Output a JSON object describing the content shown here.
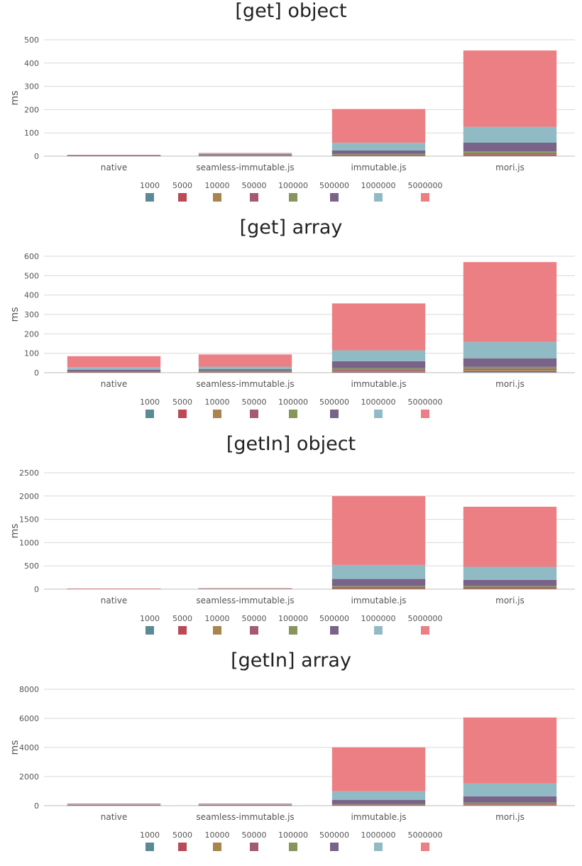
{
  "chart_data": [
    {
      "type": "bar",
      "stacked": true,
      "title": "[get] object",
      "ylabel": "ms",
      "xlabel": "",
      "ylim": [
        0,
        500
      ],
      "yticks": [
        0,
        100,
        200,
        300,
        400,
        500
      ],
      "categories": [
        "native",
        "seamless-immutable.js",
        "immutable.js",
        "mori.js"
      ],
      "series": [
        {
          "name": "1000",
          "color": "#5b8a94",
          "values": [
            0.1,
            0.3,
            0.5,
            1
          ]
        },
        {
          "name": "5000",
          "color": "#b94a56",
          "values": [
            0.2,
            0.5,
            1,
            2
          ]
        },
        {
          "name": "10000",
          "color": "#a8844e",
          "values": [
            0.3,
            1,
            2,
            4
          ]
        },
        {
          "name": "50000",
          "color": "#a45a74",
          "values": [
            0.6,
            2,
            3,
            6
          ]
        },
        {
          "name": "100000",
          "color": "#85955c",
          "values": [
            0.8,
            2,
            3,
            8
          ]
        },
        {
          "name": "500000",
          "color": "#7a6389",
          "values": [
            1,
            3,
            15,
            37
          ]
        },
        {
          "name": "1000000",
          "color": "#91bbc4",
          "values": [
            1,
            3,
            33,
            68
          ]
        },
        {
          "name": "5000000",
          "color": "#ec7f84",
          "values": [
            2,
            2,
            145,
            328
          ]
        }
      ]
    },
    {
      "type": "bar",
      "stacked": true,
      "title": "[get] array",
      "ylabel": "ms",
      "xlabel": "",
      "ylim": [
        0,
        600
      ],
      "yticks": [
        0,
        100,
        200,
        300,
        400,
        500,
        600
      ],
      "categories": [
        "native",
        "seamless-immutable.js",
        "immutable.js",
        "mori.js"
      ],
      "series": [
        {
          "name": "1000",
          "color": "#5b8a94",
          "values": [
            1,
            1,
            2,
            3
          ]
        },
        {
          "name": "5000",
          "color": "#b94a56",
          "values": [
            1,
            1,
            3,
            5
          ]
        },
        {
          "name": "10000",
          "color": "#a8844e",
          "values": [
            1,
            2,
            5,
            6
          ]
        },
        {
          "name": "50000",
          "color": "#a45a74",
          "values": [
            2,
            3,
            6,
            7
          ]
        },
        {
          "name": "100000",
          "color": "#85955c",
          "values": [
            2,
            3,
            7,
            9
          ]
        },
        {
          "name": "500000",
          "color": "#7a6389",
          "values": [
            8,
            8,
            36,
            44
          ]
        },
        {
          "name": "1000000",
          "color": "#91bbc4",
          "values": [
            13,
            13,
            56,
            84
          ]
        },
        {
          "name": "5000000",
          "color": "#ec7f84",
          "values": [
            57,
            63,
            242,
            412
          ]
        }
      ]
    },
    {
      "type": "bar",
      "stacked": true,
      "title": "[getIn] object",
      "ylabel": "ms",
      "xlabel": "",
      "ylim": [
        0,
        2500
      ],
      "yticks": [
        0,
        500,
        1000,
        1500,
        2000,
        2500
      ],
      "categories": [
        "native",
        "seamless-immutable.js",
        "immutable.js",
        "mori.js"
      ],
      "series": [
        {
          "name": "1000",
          "color": "#5b8a94",
          "values": [
            0.1,
            0.5,
            5,
            5
          ]
        },
        {
          "name": "5000",
          "color": "#b94a56",
          "values": [
            0.1,
            0.5,
            10,
            10
          ]
        },
        {
          "name": "10000",
          "color": "#a8844e",
          "values": [
            0.1,
            1,
            15,
            15
          ]
        },
        {
          "name": "50000",
          "color": "#a45a74",
          "values": [
            0.1,
            1,
            20,
            20
          ]
        },
        {
          "name": "100000",
          "color": "#85955c",
          "values": [
            0.1,
            1,
            20,
            20
          ]
        },
        {
          "name": "500000",
          "color": "#7a6389",
          "values": [
            0.2,
            3,
            150,
            130
          ]
        },
        {
          "name": "1000000",
          "color": "#91bbc4",
          "values": [
            0.3,
            5,
            300,
            280
          ]
        },
        {
          "name": "5000000",
          "color": "#ec7f84",
          "values": [
            0.4,
            8,
            1480,
            1290
          ]
        }
      ]
    },
    {
      "type": "bar",
      "stacked": true,
      "title": "[getIn] array",
      "ylabel": "ms",
      "xlabel": "",
      "ylim": [
        0,
        8000
      ],
      "yticks": [
        0,
        2000,
        4000,
        6000,
        8000
      ],
      "categories": [
        "native",
        "seamless-immutable.js",
        "immutable.js",
        "mori.js"
      ],
      "series": [
        {
          "name": "1000",
          "color": "#5b8a94",
          "values": [
            2,
            2,
            20,
            30
          ]
        },
        {
          "name": "5000",
          "color": "#b94a56",
          "values": [
            3,
            3,
            20,
            30
          ]
        },
        {
          "name": "10000",
          "color": "#a8844e",
          "values": [
            4,
            4,
            20,
            40
          ]
        },
        {
          "name": "50000",
          "color": "#a45a74",
          "values": [
            6,
            6,
            20,
            50
          ]
        },
        {
          "name": "100000",
          "color": "#85955c",
          "values": [
            10,
            10,
            40,
            60
          ]
        },
        {
          "name": "500000",
          "color": "#7a6389",
          "values": [
            25,
            25,
            270,
            430
          ]
        },
        {
          "name": "1000000",
          "color": "#91bbc4",
          "values": [
            40,
            40,
            600,
            880
          ]
        },
        {
          "name": "5000000",
          "color": "#ec7f84",
          "values": [
            60,
            60,
            3020,
            4540
          ]
        }
      ]
    }
  ]
}
